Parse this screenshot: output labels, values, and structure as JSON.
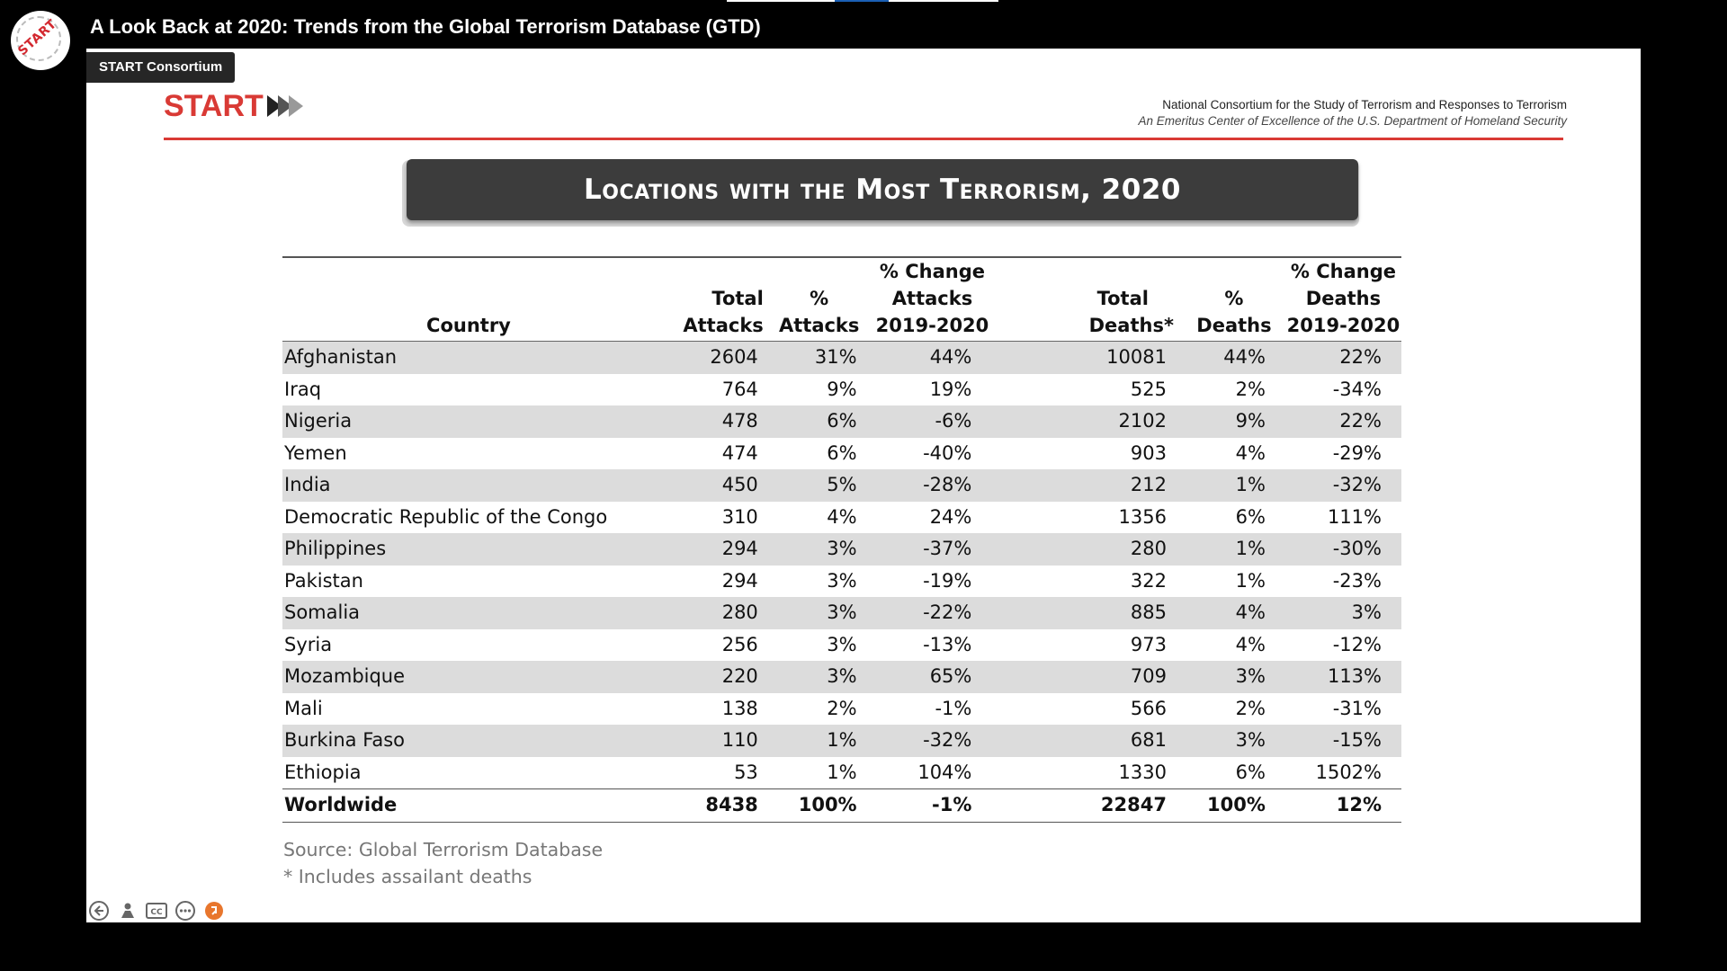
{
  "video": {
    "title": "A Look Back at 2020: Trends from the Global Terrorism Database (GTD)",
    "channel_tag": "START Consortium",
    "avatar_text": "START"
  },
  "slide": {
    "logo_text": "START",
    "org_name": "National Consortium for the Study of Terrorism and Responses to Terrorism",
    "org_subtitle": "An Emeritus Center of Excellence of the U.S. Department of Homeland Security",
    "title": "Locations with the Most Terrorism, 2020",
    "table": {
      "headers": {
        "country": "Country",
        "total_attacks": [
          "Total",
          "Attacks"
        ],
        "pct_attacks": [
          "%",
          "Attacks"
        ],
        "pct_change_attacks": [
          "% Change",
          "Attacks",
          "2019-2020"
        ],
        "total_deaths": [
          "Total",
          "Deaths*"
        ],
        "pct_deaths": [
          "%",
          "Deaths"
        ],
        "pct_change_deaths": [
          "% Change",
          "Deaths",
          "2019-2020"
        ]
      },
      "rows": [
        [
          "Afghanistan",
          "2604",
          "31%",
          "44%",
          "10081",
          "44%",
          "22%"
        ],
        [
          "Iraq",
          "764",
          "9%",
          "19%",
          "525",
          "2%",
          "-34%"
        ],
        [
          "Nigeria",
          "478",
          "6%",
          "-6%",
          "2102",
          "9%",
          "22%"
        ],
        [
          "Yemen",
          "474",
          "6%",
          "-40%",
          "903",
          "4%",
          "-29%"
        ],
        [
          "India",
          "450",
          "5%",
          "-28%",
          "212",
          "1%",
          "-32%"
        ],
        [
          "Democratic Republic of the Congo",
          "310",
          "4%",
          "24%",
          "1356",
          "6%",
          "111%"
        ],
        [
          "Philippines",
          "294",
          "3%",
          "-37%",
          "280",
          "1%",
          "-30%"
        ],
        [
          "Pakistan",
          "294",
          "3%",
          "-19%",
          "322",
          "1%",
          "-23%"
        ],
        [
          "Somalia",
          "280",
          "3%",
          "-22%",
          "885",
          "4%",
          "3%"
        ],
        [
          "Syria",
          "256",
          "3%",
          "-13%",
          "973",
          "4%",
          "-12%"
        ],
        [
          "Mozambique",
          "220",
          "3%",
          "65%",
          "709",
          "3%",
          "113%"
        ],
        [
          "Mali",
          "138",
          "2%",
          "-1%",
          "566",
          "2%",
          "-31%"
        ],
        [
          "Burkina Faso",
          "110",
          "1%",
          "-32%",
          "681",
          "3%",
          "-15%"
        ],
        [
          "Ethiopia",
          "53",
          "1%",
          "104%",
          "1330",
          "6%",
          "1502%"
        ]
      ],
      "total": [
        "Worldwide",
        "8438",
        "100%",
        "-1%",
        "22847",
        "100%",
        "12%"
      ]
    },
    "source": "Source: Global Terrorism Database",
    "footnote": "* Includes assailant deaths"
  },
  "controls": {
    "icons": [
      "back-icon",
      "person-icon",
      "cc-icon",
      "more-icon",
      "share-icon"
    ],
    "accent_color": "#e8762d"
  },
  "colors": {
    "brand_red": "#d93a35",
    "banner_bg": "#3c3c3c",
    "row_shade": "#dcdcdc"
  }
}
